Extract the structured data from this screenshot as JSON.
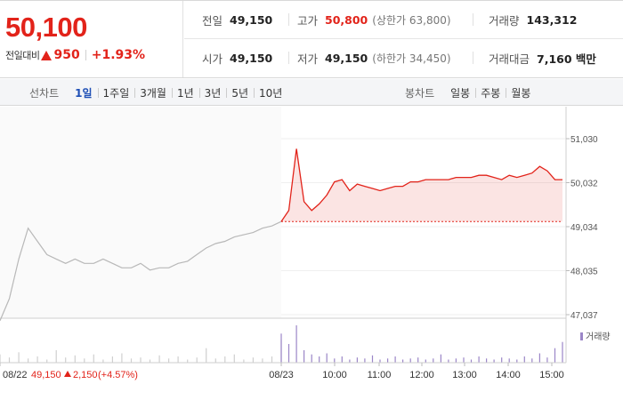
{
  "quote": {
    "price": "50,100",
    "change_label": "전일대비",
    "change": "950",
    "change_pct": "+1.93%"
  },
  "stats": {
    "prev_close_label": "전일",
    "prev_close": "49,150",
    "high_label": "고가",
    "high": "50,800",
    "upper_limit": "(상한가 63,800)",
    "volume_label": "거래량",
    "volume": "143,312",
    "open_label": "시가",
    "open": "49,150",
    "low_label": "저가",
    "low": "49,150",
    "lower_limit": "(하한가 34,450)",
    "amount_label": "거래대금",
    "amount": "7,160 백만"
  },
  "toolbar": {
    "line_chart_label": "선차트",
    "periods": [
      "1일",
      "1주일",
      "3개월",
      "1년",
      "3년",
      "5년",
      "10년"
    ],
    "active_period": "1일",
    "candle_chart_label": "봉차트",
    "candles": [
      "일봉",
      "주봉",
      "월봉"
    ]
  },
  "colors": {
    "up": "#e2231a",
    "prev_line": "#b8b8b8",
    "volume_today": "#9b86c7",
    "volume_prev": "#cfcfcf",
    "active_tab": "#1d4eb5"
  },
  "chart_data": {
    "type": "line",
    "y_ticks": [
      "51,030",
      "50,032",
      "49,034",
      "48,035",
      "47,037"
    ],
    "ylim": [
      47037,
      51030
    ],
    "x_ticks": [
      "08/22",
      "08/23",
      "10:00",
      "11:00",
      "12:00",
      "13:00",
      "14:00",
      "15:00"
    ],
    "prev_day_footer": {
      "date": "08/22",
      "close": "49,150",
      "change": "2,150",
      "change_pct": "(+4.57%)"
    },
    "volume_legend": "거래량",
    "baseline": 49150,
    "series": [
      {
        "day": "08/22",
        "values": [
          46900,
          47400,
          48300,
          49000,
          48700,
          48400,
          48300,
          48200,
          48300,
          48200,
          48200,
          48300,
          48200,
          48100,
          48100,
          48200,
          48050,
          48100,
          48100,
          48200,
          48250,
          48400,
          48550,
          48650,
          48700,
          48800,
          48850,
          48900,
          49000,
          49050,
          49150
        ]
      },
      {
        "day": "08/23",
        "values": [
          49150,
          49400,
          50800,
          49600,
          49400,
          49550,
          49750,
          50050,
          50100,
          49850,
          50000,
          49950,
          49900,
          49850,
          49900,
          49950,
          49950,
          50050,
          50050,
          50100,
          50100,
          50100,
          50100,
          50150,
          50150,
          50150,
          50200,
          50200,
          50150,
          50100,
          50200,
          50150,
          50200,
          50250,
          50400,
          50300,
          50100,
          50100
        ]
      }
    ],
    "volume": {
      "prev_day": [
        8,
        5,
        10,
        4,
        6,
        3,
        12,
        5,
        7,
        4,
        8,
        3,
        6,
        9,
        4,
        5,
        3,
        7,
        4,
        6,
        3,
        5,
        14,
        4,
        6,
        8,
        3,
        5,
        4,
        6,
        22
      ],
      "today": [
        28,
        18,
        36,
        12,
        8,
        6,
        9,
        4,
        6,
        3,
        5,
        4,
        7,
        3,
        4,
        6,
        3,
        4,
        5,
        3,
        4,
        8,
        3,
        4,
        5,
        3,
        6,
        4,
        3,
        5,
        4,
        3,
        6,
        4,
        9,
        5,
        14,
        20
      ]
    }
  }
}
